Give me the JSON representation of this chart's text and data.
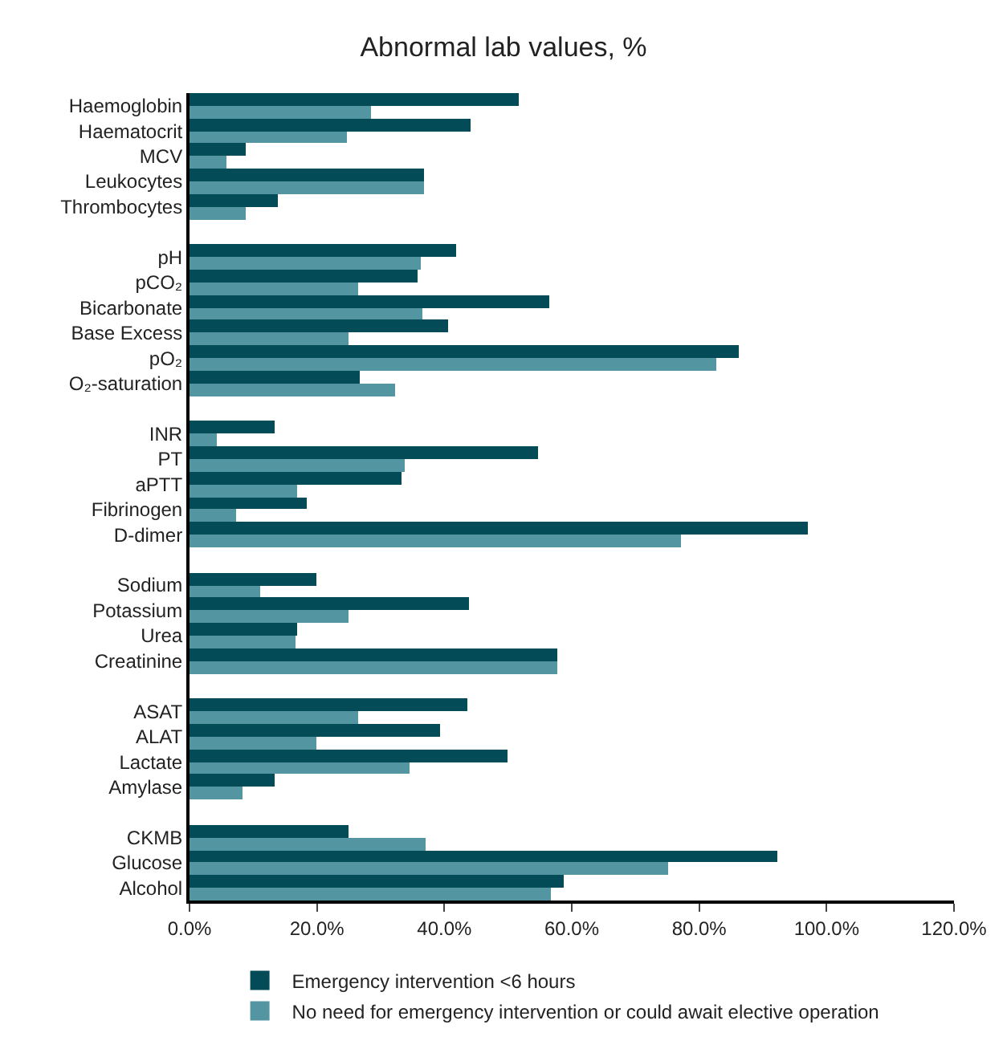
{
  "chart_data": {
    "type": "bar",
    "orientation": "horizontal",
    "title": "Abnormal lab values, %",
    "categories": [
      "Haemoglobin",
      "Haematocrit",
      "MCV",
      "Leukocytes",
      "Thrombocytes",
      null,
      "pH",
      "pCO₂",
      "Bicarbonate",
      "Base Excess",
      "pO₂",
      "O₂-saturation",
      null,
      "INR",
      "PT",
      "aPTT",
      "Fibrinogen",
      "D-dimer",
      null,
      "Sodium",
      "Potassium",
      "Urea",
      "Creatinine",
      null,
      "ASAT",
      "ALAT",
      "Lactate",
      "Amylase",
      null,
      "CKMB",
      "Glucose",
      "Alcohol"
    ],
    "series": [
      {
        "name": "Emergency intervention <6 hours",
        "color": "#024b57",
        "values": [
          51.7,
          44.0,
          8.7,
          36.8,
          13.9,
          null,
          41.8,
          35.8,
          56.5,
          40.5,
          86.1,
          26.6,
          null,
          13.4,
          54.7,
          33.3,
          18.4,
          97.0,
          null,
          19.9,
          43.8,
          16.9,
          57.7,
          null,
          43.5,
          39.3,
          49.8,
          13.4,
          null,
          24.9,
          92.3,
          58.7
        ]
      },
      {
        "name": "No need for emergency intervention or could await elective operation",
        "color": "#5396a1",
        "values": [
          28.6,
          24.6,
          5.7,
          36.8,
          8.7,
          null,
          36.3,
          26.4,
          36.6,
          24.9,
          82.6,
          32.3,
          null,
          4.2,
          33.8,
          16.9,
          7.2,
          77.1,
          null,
          11.2,
          24.9,
          16.7,
          57.7,
          null,
          26.4,
          19.9,
          34.6,
          8.2,
          null,
          37.1,
          75.1,
          56.7
        ]
      }
    ],
    "xlim": [
      0,
      120
    ],
    "xticks": [
      {
        "value": 0,
        "label": "0.0%"
      },
      {
        "value": 20,
        "label": "20.0%"
      },
      {
        "value": 40,
        "label": "40.0%"
      },
      {
        "value": 60,
        "label": "60.0%"
      },
      {
        "value": 80,
        "label": "80.0%"
      },
      {
        "value": 100,
        "label": "100.0%"
      },
      {
        "value": 120,
        "label": "120.0%"
      }
    ],
    "legend": "bottom"
  }
}
